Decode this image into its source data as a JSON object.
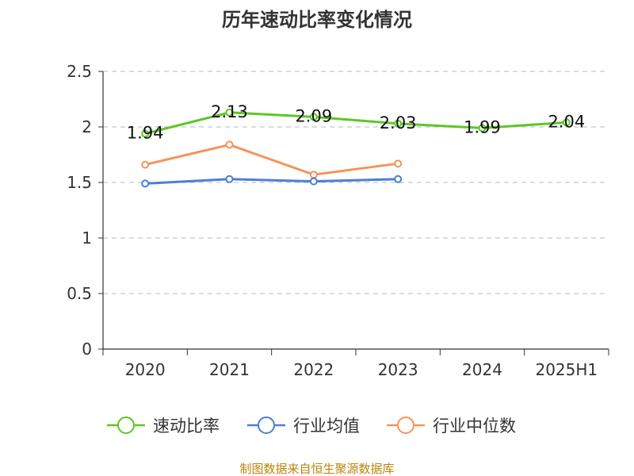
{
  "chart_data": {
    "type": "line",
    "title": "历年速动比率变化情况",
    "categories": [
      "2020",
      "2021",
      "2022",
      "2023",
      "2024",
      "2025H1"
    ],
    "ylim": [
      0,
      2.5
    ],
    "yticks": [
      0,
      0.5,
      1,
      1.5,
      2,
      2.5
    ],
    "grid": "horizontal dashed",
    "legend_position": "bottom",
    "series": [
      {
        "name": "速动比率",
        "color": "#5ec626",
        "values": [
          1.94,
          2.13,
          2.09,
          2.03,
          1.99,
          2.04
        ],
        "labels": [
          "1.94",
          "2.13",
          "2.09",
          "2.03",
          "1.99",
          "2.04"
        ]
      },
      {
        "name": "行业均值",
        "color": "#4b7fd6",
        "values": [
          1.49,
          1.53,
          1.51,
          1.53,
          null,
          null
        ]
      },
      {
        "name": "行业中位数",
        "color": "#f5935a",
        "values": [
          1.66,
          1.84,
          1.57,
          1.67,
          null,
          null
        ]
      }
    ],
    "source": "制图数据来自恒生聚源数据库"
  }
}
